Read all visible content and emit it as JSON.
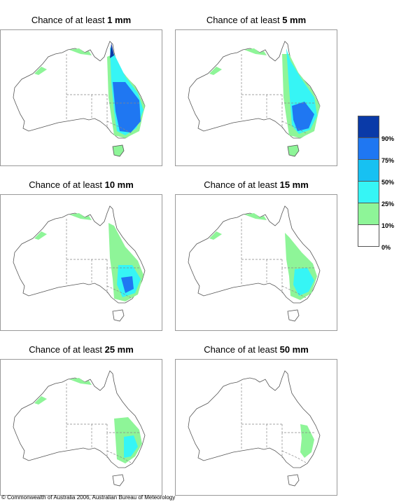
{
  "panels": [
    {
      "prefix": "Chance of at least ",
      "amount": "1 mm",
      "level": 6
    },
    {
      "prefix": "Chance of at least ",
      "amount": "5 mm",
      "level": 5
    },
    {
      "prefix": "Chance of at least ",
      "amount": "10 mm",
      "level": 4
    },
    {
      "prefix": "Chance of at least ",
      "amount": "15 mm",
      "level": 3
    },
    {
      "prefix": "Chance of at least ",
      "amount": "25 mm",
      "level": 2
    },
    {
      "prefix": "Chance of at least ",
      "amount": "50 mm",
      "level": 1
    }
  ],
  "legend": {
    "colors": [
      "#0a3aa8",
      "#1f77f2",
      "#17c1f2",
      "#36f5f5",
      "#8ef598",
      "#ffffff"
    ],
    "labels": [
      "90%",
      "75%",
      "50%",
      "25%",
      "10%",
      "0%"
    ]
  },
  "copyright": "© Commonwealth of Australia 2006, Australian Bureau of Meteorology"
}
